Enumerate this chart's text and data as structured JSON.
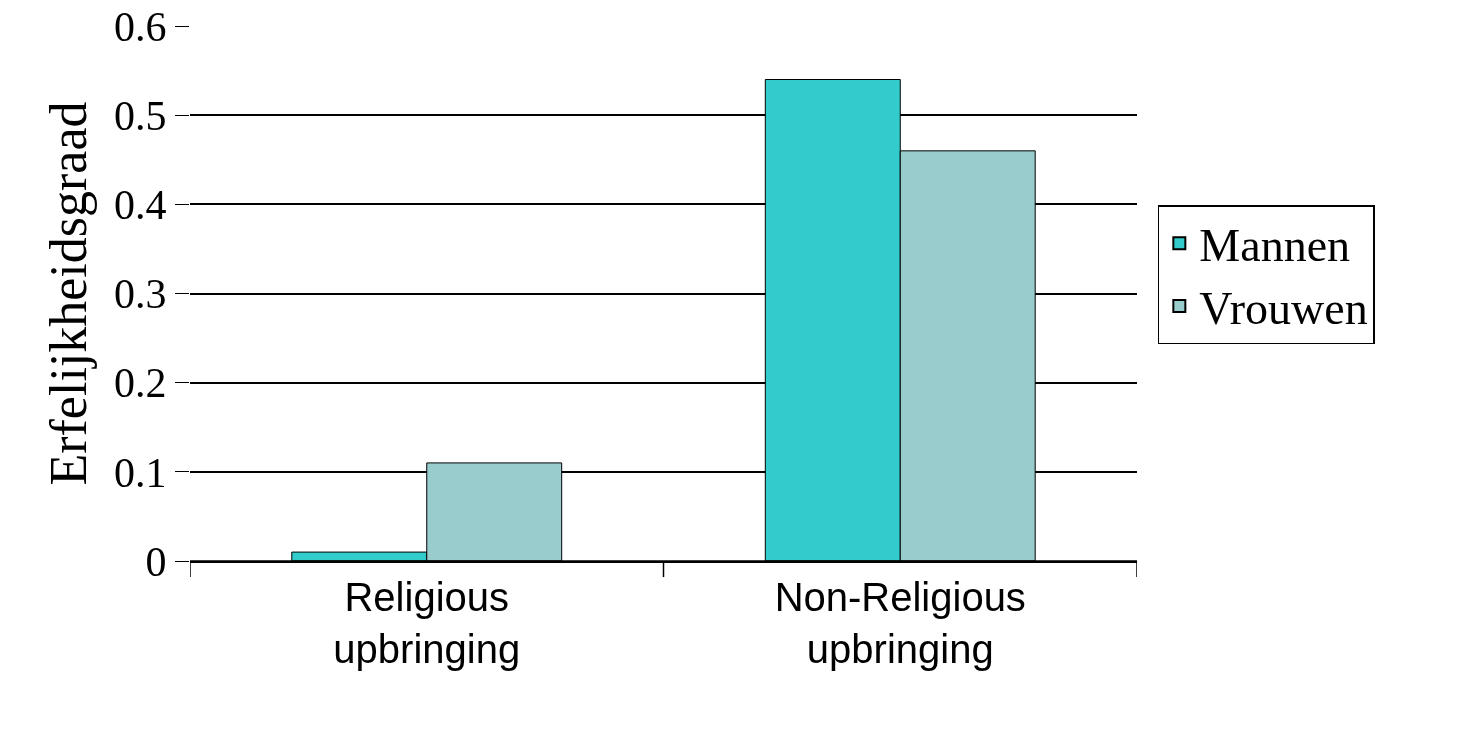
{
  "chart_data": {
    "type": "bar",
    "ylabel": "Erfelijkheidsgraad",
    "categories": [
      "Religious\nupbringing",
      "Non-Religious\nupbringing"
    ],
    "series": [
      {
        "name": "Mannen",
        "color": "#33cccc",
        "values": [
          0.01,
          0.54
        ]
      },
      {
        "name": "Vrouwen",
        "color": "#99cccc",
        "values": [
          0.11,
          0.46
        ]
      }
    ],
    "ylim": [
      0,
      0.6
    ],
    "yticks": [
      0,
      0.1,
      0.2,
      0.3,
      0.4,
      0.5,
      0.6
    ],
    "grid": "y",
    "legend": "right"
  }
}
